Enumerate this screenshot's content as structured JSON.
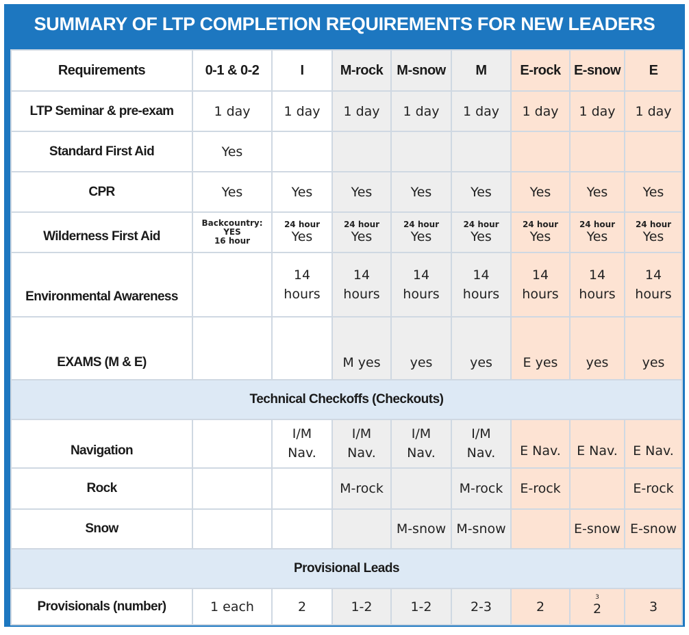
{
  "title": "SUMMARY OF LTP COMPLETION REQUIREMENTS FOR NEW LEADERS",
  "columns": [
    "Requirements",
    "0-1 & 0-2",
    "I",
    "M-rock",
    "M-snow",
    "M",
    "E-rock",
    "E-snow",
    "E"
  ],
  "rows": {
    "seminar": {
      "label": "LTP  Seminar & pre-exam",
      "cells": [
        "1 day",
        "1 day",
        "1 day",
        "1 day",
        "1 day",
        "1 day",
        "1 day",
        "1 day"
      ]
    },
    "sfa": {
      "label": "Standard First Aid",
      "cells": [
        "Yes",
        "",
        "",
        "",
        "",
        "",
        "",
        ""
      ]
    },
    "cpr": {
      "label": "CPR",
      "cells": [
        "Yes",
        "Yes",
        "Yes",
        "Yes",
        "Yes",
        "Yes",
        "Yes",
        "Yes"
      ]
    },
    "wfa": {
      "label": "Wilderness First Aid",
      "backcountry": [
        "Backcountry:",
        "YES",
        "16 hour"
      ],
      "hours_note": "24 hour",
      "value": "Yes"
    },
    "env": {
      "label": "Environmental Awareness",
      "line1": "14",
      "line2": "hours"
    },
    "exams": {
      "label": "EXAMS (M & E)",
      "cells": [
        "",
        "",
        "M yes",
        "yes",
        "yes",
        "E yes",
        "yes",
        "yes"
      ]
    }
  },
  "band_technical": "Technical Checkoffs (Checkouts)",
  "tech": {
    "navigation": {
      "label": "Navigation",
      "im_line1": "I/M",
      "im_line2": "Nav.",
      "e_nav": "E Nav."
    },
    "rock": {
      "label": "Rock",
      "cells": [
        "",
        "",
        "M-rock",
        "",
        "M-rock",
        "E-rock",
        "",
        "E-rock"
      ]
    },
    "snow": {
      "label": "Snow",
      "cells": [
        "",
        "",
        "",
        "M-snow",
        "M-snow",
        "",
        "E-snow",
        "E-snow"
      ]
    }
  },
  "band_provisional": "Provisional Leads",
  "provisionals": {
    "label": "Provisionals (number)",
    "cells": [
      "1 each",
      "2",
      "1-2",
      "1-2",
      "2-3",
      "2",
      "2",
      "3"
    ],
    "e_snow_mark": "3"
  },
  "colors": {
    "frame": "#1d77c0",
    "band": "#dde9f5",
    "mountaineer": "#eeeeee",
    "expert": "#fde3d3"
  }
}
